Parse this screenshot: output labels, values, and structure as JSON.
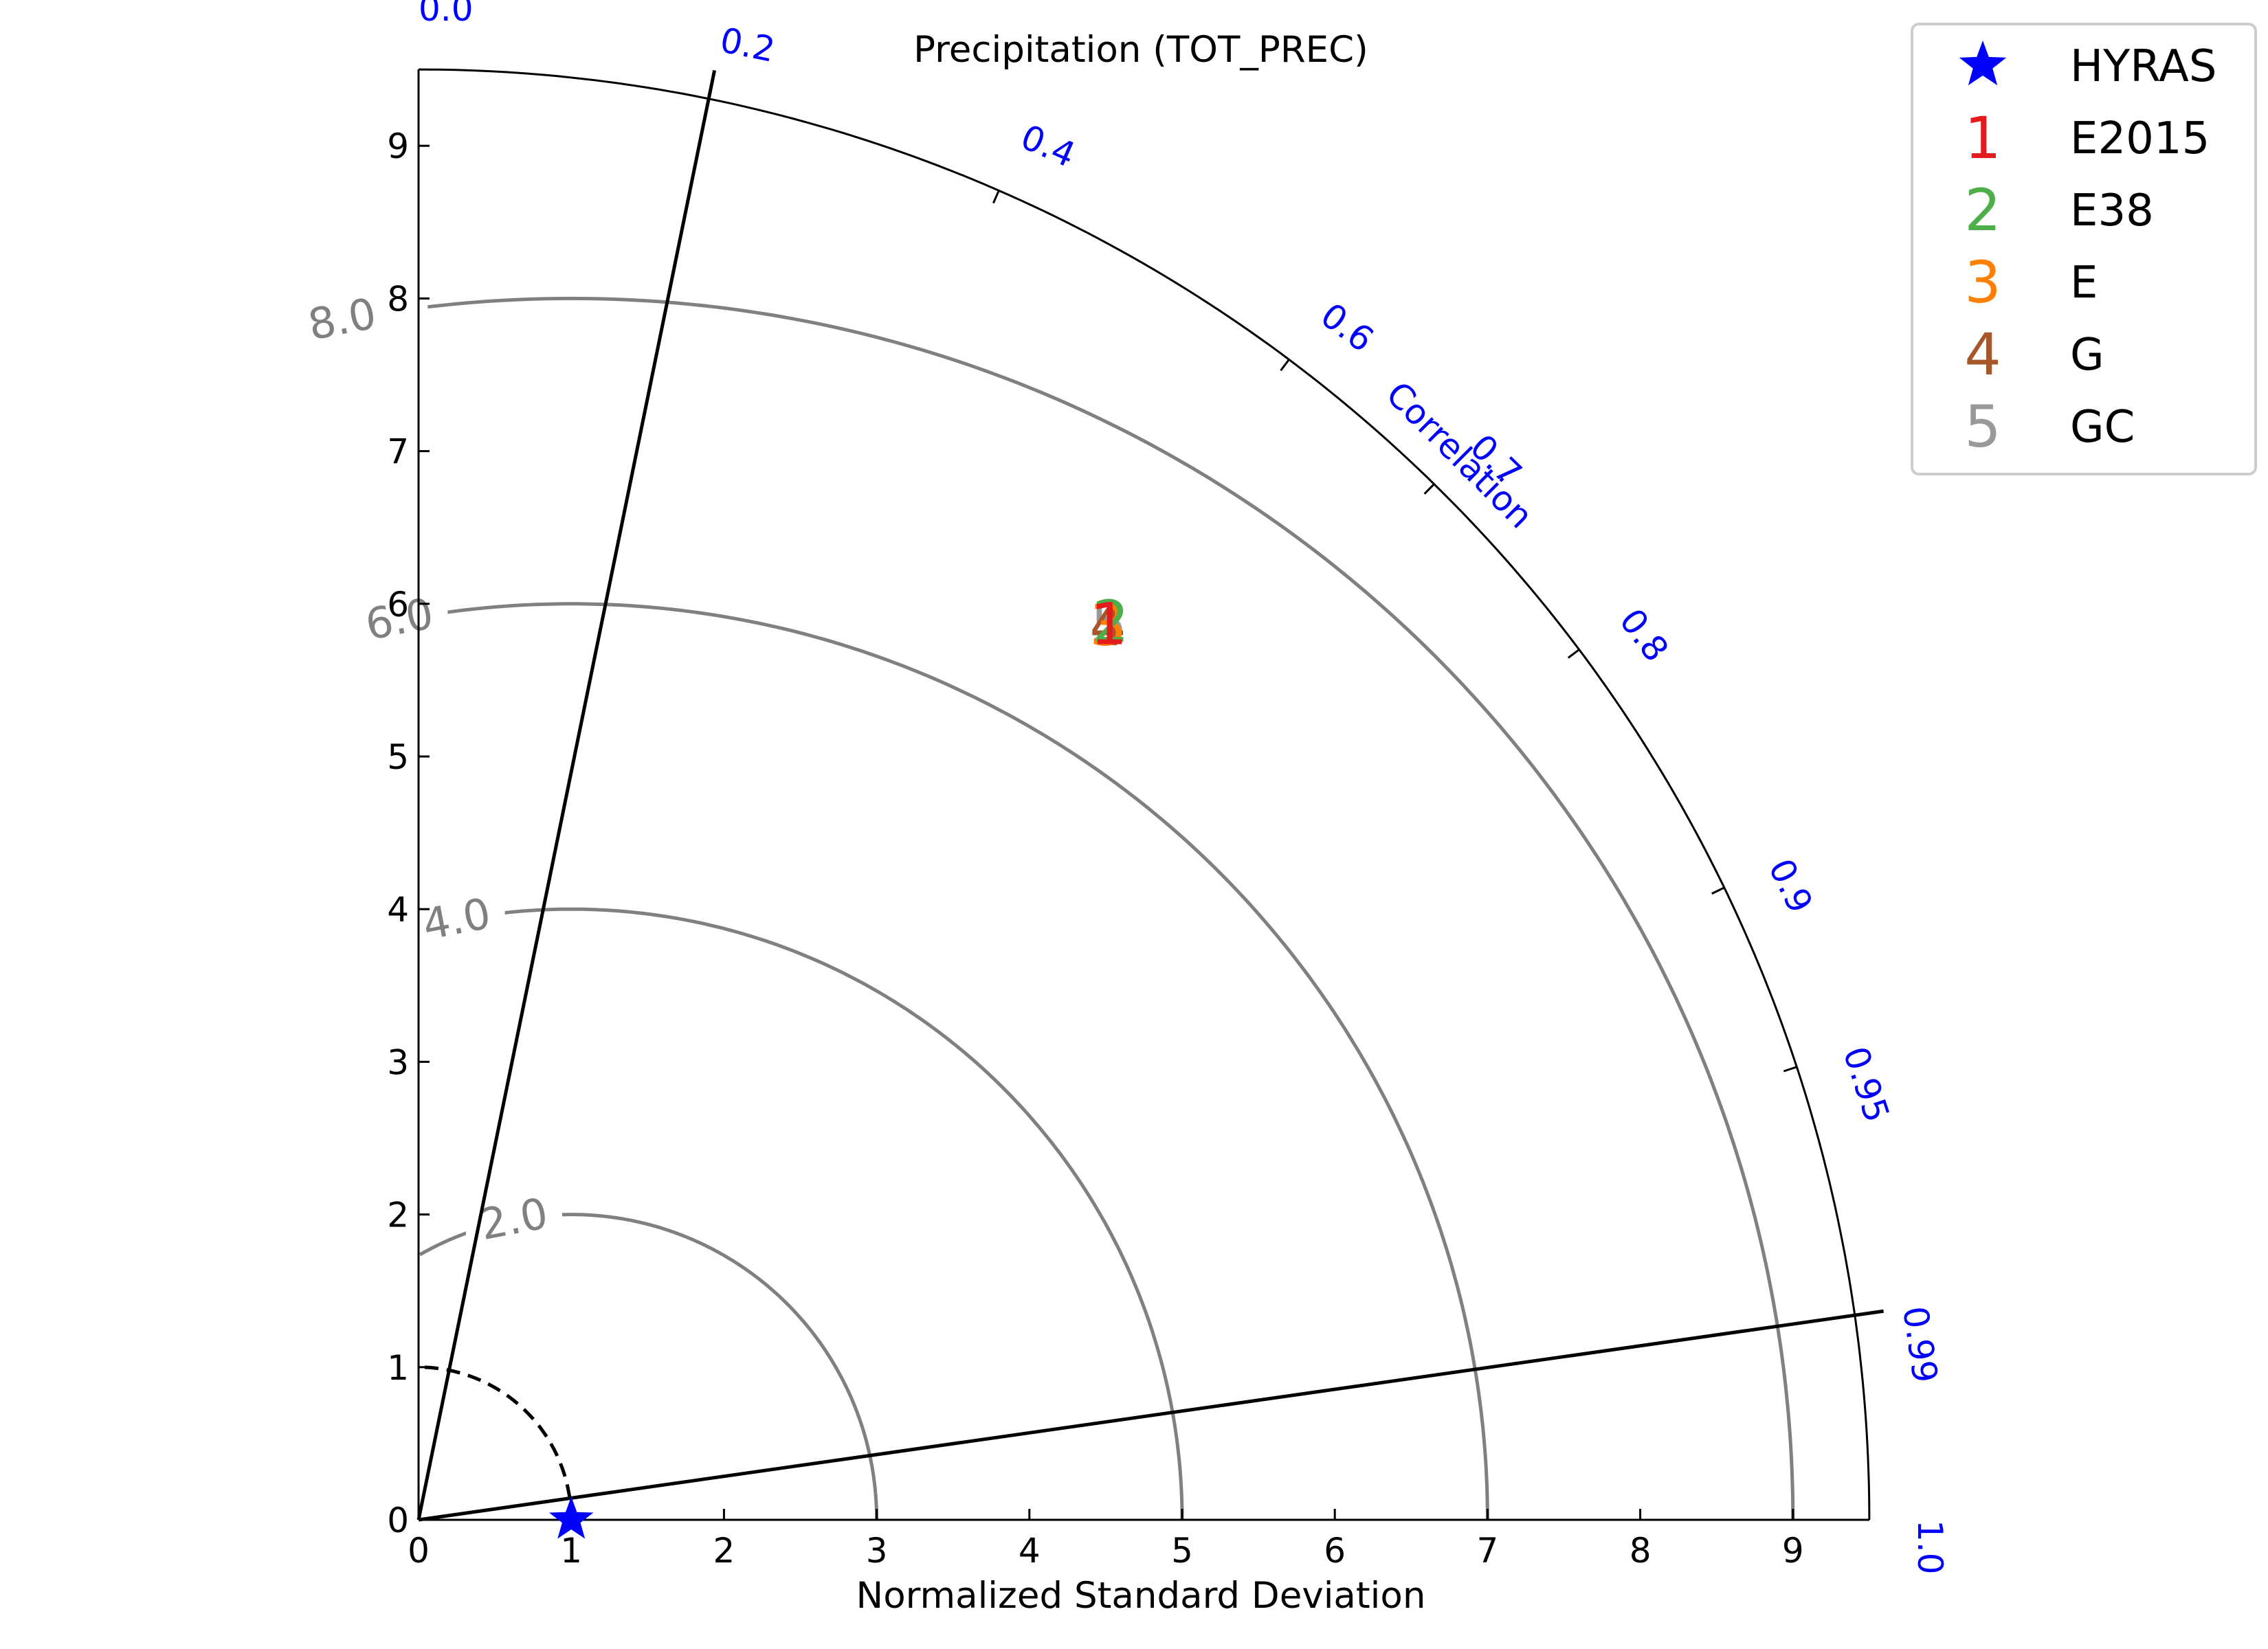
{
  "chart_data": {
    "type": "taylor-diagram",
    "title": "Precipitation (TOT_PREC)",
    "xlabel": "Normalized Standard Deviation",
    "correlation_label": "Correlation",
    "std_range": [
      0,
      9.5
    ],
    "std_ticks": [
      0,
      1,
      2,
      3,
      4,
      5,
      6,
      7,
      8,
      9
    ],
    "correlation_range": [
      0.0,
      1.0
    ],
    "correlation_ticks": [
      "0.0",
      "0.2",
      "0.4",
      "0.6",
      "0.7",
      "0.8",
      "0.9",
      "0.95",
      "0.99",
      "1.0"
    ],
    "correlation_tick_values": [
      0.0,
      0.2,
      0.4,
      0.6,
      0.7,
      0.8,
      0.9,
      0.95,
      0.99,
      1.0
    ],
    "reference": {
      "name": "HYRAS",
      "std": 1.0,
      "correlation": 1.0,
      "marker": "star",
      "color": "#0000ff"
    },
    "reference_arc_std": 1.0,
    "rms_contours": [
      {
        "value": 2.0,
        "label": "2.0"
      },
      {
        "value": 4.0,
        "label": "4.0"
      },
      {
        "value": 6.0,
        "label": "6.0"
      },
      {
        "value": 8.0,
        "label": "8.0"
      }
    ],
    "correlation_lines": [
      0.2,
      0.99
    ],
    "series": [
      {
        "id": "1",
        "name": "E2015",
        "color": "#e41a1c",
        "std": 7.41,
        "correlation": 0.61
      },
      {
        "id": "2",
        "name": "E38",
        "color": "#4daf4a",
        "std": 7.43,
        "correlation": 0.61
      },
      {
        "id": "3",
        "name": "E",
        "color": "#ff7f00",
        "std": 7.4,
        "correlation": 0.61
      },
      {
        "id": "4",
        "name": "G",
        "color": "#a65628",
        "std": 7.4,
        "correlation": 0.61
      },
      {
        "id": "5",
        "name": "GC",
        "color": "#999999",
        "std": 7.41,
        "correlation": 0.61
      }
    ],
    "legend_position": "top-right",
    "grid": false
  }
}
